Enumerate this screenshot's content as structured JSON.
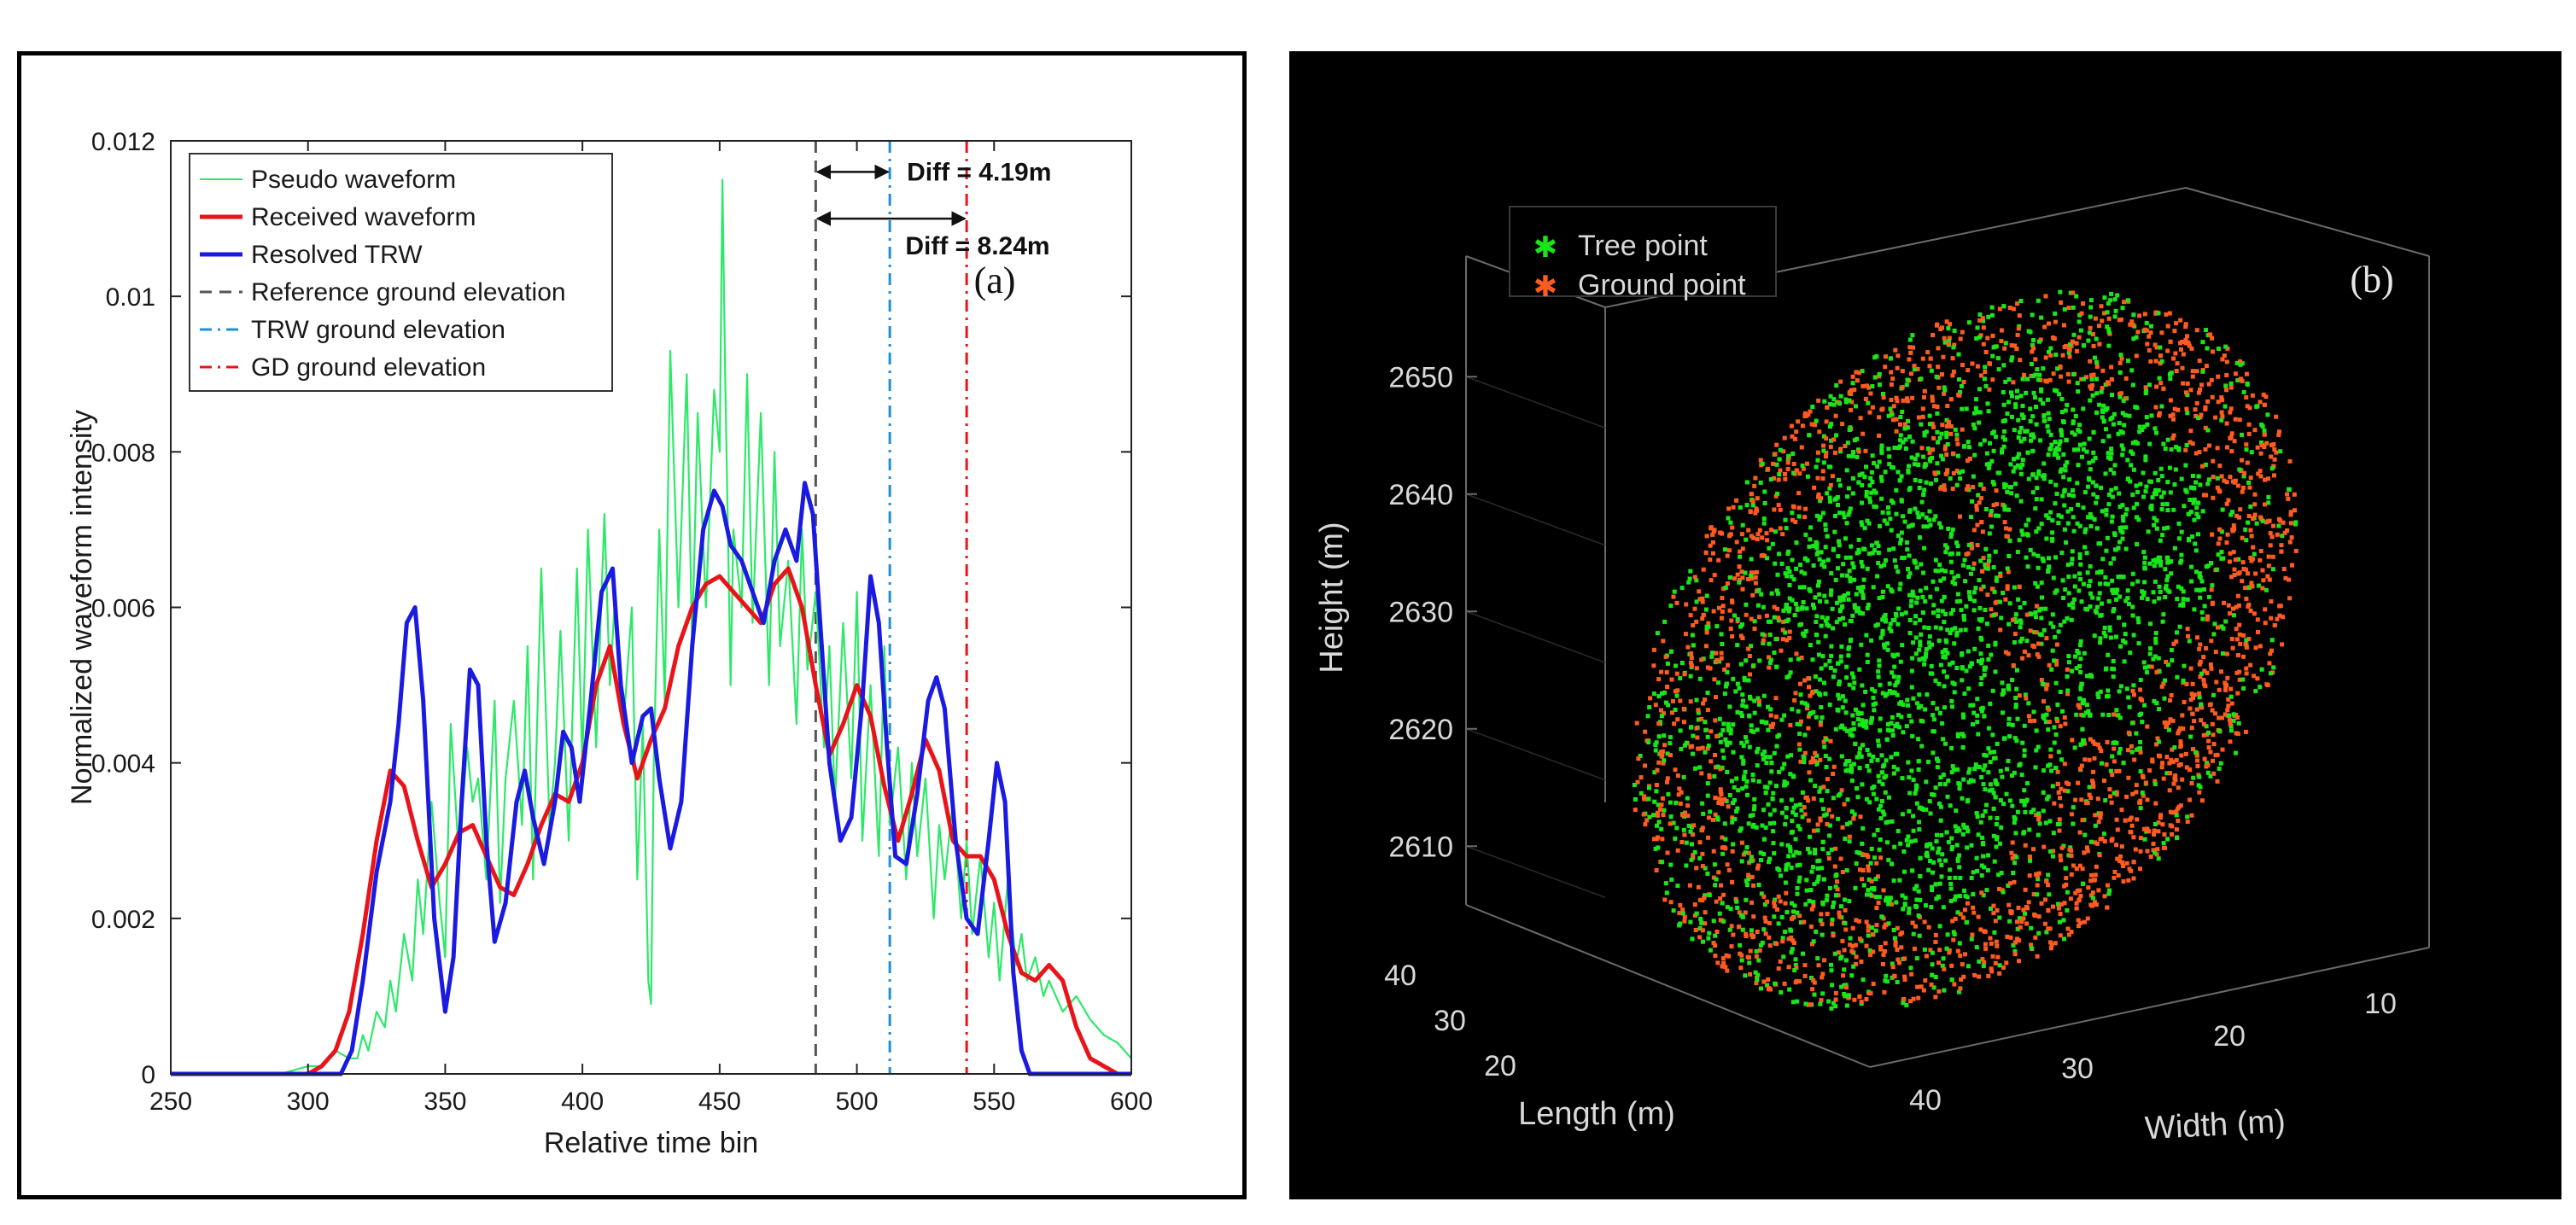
{
  "chart_data": [
    {
      "type": "line",
      "panel_label": "(a)",
      "xlabel": "Relative time bin",
      "ylabel": "Normalized waveform intensity",
      "xlim": [
        250,
        600
      ],
      "ylim": [
        0,
        0.012
      ],
      "xticks": [
        250,
        300,
        350,
        400,
        450,
        500,
        550,
        600
      ],
      "yticks": [
        0,
        0.002,
        0.004,
        0.006,
        0.008,
        0.01,
        0.012
      ],
      "ytick_labels": [
        "0",
        "0.002",
        "0.004",
        "0.006",
        "0.008",
        "0.01",
        "0.012"
      ],
      "series": [
        {
          "name": "Pseudo waveform",
          "color": "#2ee86a",
          "style": "solid",
          "x": [
            290,
            300,
            305,
            310,
            315,
            318,
            320,
            322,
            325,
            328,
            330,
            332,
            335,
            338,
            340,
            342,
            345,
            348,
            350,
            352,
            355,
            358,
            360,
            362,
            365,
            368,
            370,
            372,
            375,
            378,
            380,
            382,
            385,
            388,
            390,
            392,
            395,
            398,
            400,
            402,
            405,
            408,
            410,
            412,
            415,
            418,
            420,
            422,
            424,
            425,
            426,
            428,
            430,
            432,
            435,
            438,
            440,
            442,
            445,
            448,
            450,
            451,
            452,
            454,
            455,
            458,
            460,
            462,
            465,
            468,
            470,
            472,
            475,
            478,
            480,
            482,
            485,
            488,
            490,
            492,
            495,
            498,
            500,
            502,
            505,
            508,
            510,
            512,
            515,
            518,
            520,
            522,
            525,
            528,
            530,
            532,
            535,
            538,
            540,
            542,
            545,
            548,
            550,
            552,
            555,
            558,
            560,
            562,
            565,
            568,
            570,
            575,
            580,
            585,
            590,
            595,
            600
          ],
          "y": [
            0,
            0.0001,
            0.0001,
            0.0003,
            0.0002,
            0.0002,
            0.0005,
            0.0003,
            0.0008,
            0.0006,
            0.0012,
            0.0008,
            0.0018,
            0.0012,
            0.0025,
            0.0018,
            0.0035,
            0.0022,
            0.0015,
            0.0045,
            0.0028,
            0.0042,
            0.0035,
            0.0038,
            0.0025,
            0.0048,
            0.0022,
            0.0038,
            0.0048,
            0.0032,
            0.0055,
            0.0025,
            0.0065,
            0.0032,
            0.004,
            0.0057,
            0.003,
            0.0065,
            0.004,
            0.007,
            0.0042,
            0.0072,
            0.005,
            0.0062,
            0.0045,
            0.006,
            0.0025,
            0.0045,
            0.0012,
            0.0009,
            0.004,
            0.007,
            0.0048,
            0.0093,
            0.006,
            0.009,
            0.0055,
            0.0085,
            0.006,
            0.0088,
            0.008,
            0.0115,
            0.009,
            0.005,
            0.007,
            0.006,
            0.009,
            0.0058,
            0.0085,
            0.005,
            0.008,
            0.0055,
            0.0066,
            0.0045,
            0.007,
            0.0052,
            0.0062,
            0.0042,
            0.0055,
            0.0035,
            0.0058,
            0.0038,
            0.0062,
            0.003,
            0.005,
            0.0028,
            0.0055,
            0.0032,
            0.0042,
            0.0025,
            0.004,
            0.0028,
            0.0038,
            0.002,
            0.0032,
            0.0025,
            0.0035,
            0.002,
            0.003,
            0.0018,
            0.0028,
            0.0015,
            0.0022,
            0.0012,
            0.0025,
            0.0014,
            0.0018,
            0.0012,
            0.0015,
            0.001,
            0.0012,
            0.0008,
            0.001,
            0.0007,
            0.0005,
            0.0004,
            0.0002
          ]
        },
        {
          "name": "Received waveform",
          "color": "#e8141a",
          "style": "solid",
          "x": [
            250,
            300,
            305,
            310,
            315,
            320,
            325,
            330,
            335,
            340,
            345,
            350,
            355,
            360,
            365,
            370,
            375,
            380,
            385,
            390,
            395,
            400,
            405,
            410,
            415,
            420,
            425,
            430,
            435,
            440,
            445,
            450,
            455,
            460,
            465,
            470,
            475,
            480,
            485,
            490,
            495,
            500,
            505,
            510,
            515,
            520,
            525,
            530,
            535,
            540,
            545,
            550,
            555,
            560,
            565,
            570,
            575,
            580,
            585,
            590,
            595,
            600
          ],
          "y": [
            0,
            0,
            0.0001,
            0.0003,
            0.0008,
            0.0018,
            0.003,
            0.0039,
            0.0037,
            0.003,
            0.0024,
            0.0027,
            0.0031,
            0.0032,
            0.0028,
            0.0024,
            0.0023,
            0.0027,
            0.0032,
            0.0036,
            0.0035,
            0.004,
            0.005,
            0.0055,
            0.0045,
            0.0038,
            0.0043,
            0.0047,
            0.0055,
            0.006,
            0.0063,
            0.0064,
            0.0062,
            0.006,
            0.0058,
            0.0063,
            0.0065,
            0.006,
            0.005,
            0.0041,
            0.0045,
            0.005,
            0.0046,
            0.0037,
            0.003,
            0.0036,
            0.0043,
            0.0039,
            0.003,
            0.0028,
            0.0028,
            0.0025,
            0.0018,
            0.0013,
            0.0012,
            0.0014,
            0.0012,
            0.0006,
            0.0002,
            0.0001,
            0,
            0
          ]
        },
        {
          "name": "Resolved TRW",
          "color": "#1a1ae0",
          "style": "solid",
          "x": [
            250,
            312,
            316,
            320,
            325,
            330,
            333,
            336,
            339,
            342,
            346,
            350,
            353,
            356,
            359,
            362,
            365,
            368,
            372,
            376,
            379,
            382,
            386,
            390,
            393,
            396,
            399,
            403,
            407,
            411,
            414,
            418,
            422,
            425,
            428,
            432,
            436,
            440,
            444,
            448,
            451,
            454,
            458,
            462,
            466,
            470,
            474,
            478,
            481,
            484,
            487,
            490,
            494,
            498,
            502,
            505,
            508,
            511,
            514,
            518,
            522,
            526,
            529,
            532,
            536,
            540,
            544,
            548,
            551,
            554,
            557,
            560,
            563,
            600
          ],
          "y": [
            0,
            0,
            0.0003,
            0.0012,
            0.0026,
            0.0035,
            0.0045,
            0.0058,
            0.006,
            0.0048,
            0.002,
            0.0008,
            0.0015,
            0.0035,
            0.0052,
            0.005,
            0.003,
            0.0017,
            0.0022,
            0.0035,
            0.0039,
            0.0033,
            0.0027,
            0.0035,
            0.0044,
            0.0042,
            0.0035,
            0.0048,
            0.0062,
            0.0065,
            0.005,
            0.004,
            0.0046,
            0.0047,
            0.0038,
            0.0029,
            0.0035,
            0.0055,
            0.007,
            0.0075,
            0.0073,
            0.0068,
            0.0066,
            0.0062,
            0.0058,
            0.0066,
            0.007,
            0.0066,
            0.0076,
            0.0072,
            0.0056,
            0.004,
            0.003,
            0.0033,
            0.0048,
            0.0064,
            0.0058,
            0.0042,
            0.0028,
            0.0027,
            0.0036,
            0.0048,
            0.0051,
            0.0047,
            0.003,
            0.002,
            0.0018,
            0.003,
            0.004,
            0.0035,
            0.0013,
            0.0003,
            0,
            0
          ]
        }
      ],
      "reference_lines": [
        {
          "name": "Reference ground elevation",
          "x": 485,
          "color": "#555555",
          "style": "dashed"
        },
        {
          "name": "TRW ground elevation",
          "x": 512,
          "color": "#1e90d6",
          "style": "dashdot"
        },
        {
          "name": "GD ground elevation",
          "x": 540,
          "color": "#e8141a",
          "style": "dashdot"
        }
      ],
      "annotations": [
        {
          "text": "Diff = 4.19m",
          "from_x": 485,
          "to_x": 512,
          "y": 0.0116
        },
        {
          "text": "Diff = 8.24m",
          "from_x": 485,
          "to_x": 540,
          "y": 0.011
        }
      ],
      "legend": "top-left"
    },
    {
      "type": "scatter",
      "projection": "3d",
      "panel_label": "(b)",
      "zlabel": "Height (m)",
      "ylabel": "Length (m)",
      "xlabel": "Width (m)",
      "zticks": [
        2610,
        2620,
        2630,
        2640,
        2650
      ],
      "yticks": [
        20,
        30,
        40
      ],
      "xticks": [
        10,
        20,
        30,
        40
      ],
      "series": [
        {
          "name": "Tree point",
          "color": "#19e619",
          "marker": "*"
        },
        {
          "name": "Ground point",
          "color": "#ff5a1f",
          "marker": "*"
        }
      ],
      "legend": "top-left",
      "background": "#000000"
    }
  ]
}
